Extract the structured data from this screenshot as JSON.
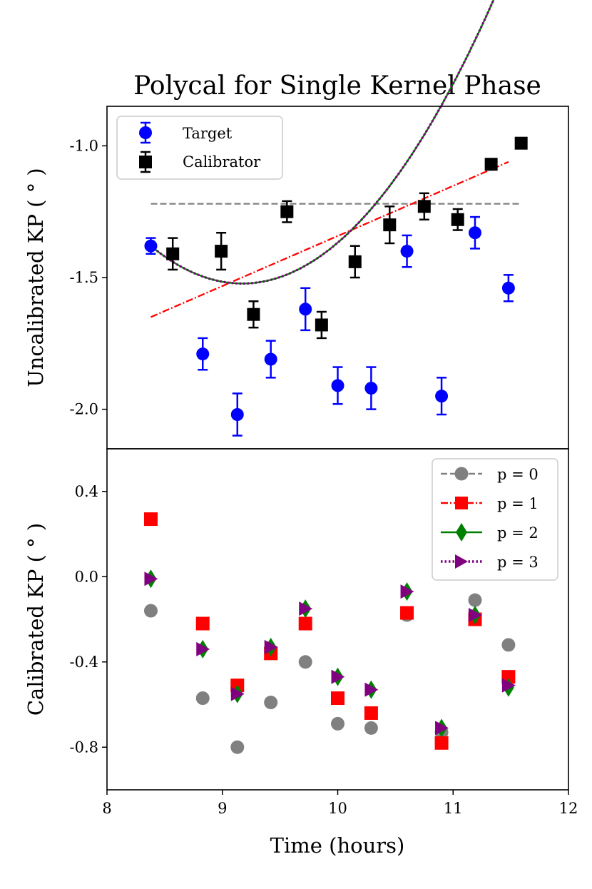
{
  "chart_data": [
    {
      "type": "scatter",
      "title": "Polycal for Single Kernel Phase",
      "xlabel": "",
      "ylabel": "Uncalibrated KP ( ° )",
      "xlim": [
        8,
        12
      ],
      "ylim": [
        -2.15,
        -0.85
      ],
      "yticks": [
        -1.0,
        -1.5,
        -2.0
      ],
      "ytick_labels": [
        "-1.0",
        "-1.5",
        "-2.0"
      ],
      "legend_position": "upper-left",
      "series": [
        {
          "name": "Target",
          "color": "#0000ff",
          "marker": "circle",
          "x": [
            8.38,
            8.83,
            9.13,
            9.42,
            9.72,
            10.0,
            10.29,
            10.6,
            10.9,
            11.19,
            11.48
          ],
          "y": [
            -1.38,
            -1.79,
            -2.02,
            -1.81,
            -1.62,
            -1.91,
            -1.92,
            -1.4,
            -1.95,
            -1.33,
            -1.54
          ],
          "err": [
            0.03,
            0.06,
            0.08,
            0.07,
            0.08,
            0.07,
            0.08,
            0.06,
            0.07,
            0.06,
            0.05
          ]
        },
        {
          "name": "Calibrator",
          "color": "#000000",
          "marker": "square",
          "x": [
            8.57,
            8.99,
            9.27,
            9.56,
            9.86,
            10.15,
            10.45,
            10.75,
            11.04,
            11.33,
            11.59
          ],
          "y": [
            -1.41,
            -1.4,
            -1.64,
            -1.25,
            -1.68,
            -1.44,
            -1.3,
            -1.23,
            -1.28,
            -1.07,
            -0.99
          ],
          "err": [
            0.06,
            0.07,
            0.05,
            0.04,
            0.05,
            0.06,
            0.07,
            0.05,
            0.04,
            0.02,
            0.02
          ]
        }
      ],
      "fits": [
        {
          "name": "p = 0",
          "color": "#808080",
          "style": "dashed",
          "x_range": [
            8.38,
            11.59
          ],
          "poly": [
            -1.22
          ]
        },
        {
          "name": "p = 1",
          "color": "#ff0000",
          "style": "dashdot",
          "x_range": [
            8.38,
            11.48
          ],
          "poly": [
            -1.65,
            0.19
          ]
        },
        {
          "name": "p = 2",
          "color": "#008000",
          "style": "solid",
          "x_range": [
            8.38,
            11.48
          ],
          "poly": [
            -1.38,
            -0.36,
            0.227
          ]
        },
        {
          "name": "p = 3",
          "color": "#800080",
          "style": "dotted",
          "x_range": [
            8.38,
            11.48
          ],
          "poly": [
            -1.38,
            -0.36,
            0.227
          ]
        }
      ]
    },
    {
      "type": "scatter",
      "title": "",
      "xlabel": "Time (hours)",
      "ylabel": "Calibrated KP ( ° )",
      "xlim": [
        8,
        12
      ],
      "ylim": [
        -1.0,
        0.6
      ],
      "xticks": [
        8,
        9,
        10,
        11,
        12
      ],
      "xtick_labels": [
        "8",
        "9",
        "10",
        "11",
        "12"
      ],
      "yticks": [
        0.4,
        0.0,
        -0.4,
        -0.8
      ],
      "ytick_labels": [
        "0.4",
        "0.0",
        "-0.4",
        "-0.8"
      ],
      "legend_position": "upper-right",
      "x": [
        8.38,
        8.83,
        9.13,
        9.42,
        9.72,
        10.0,
        10.29,
        10.6,
        10.9,
        11.19,
        11.48
      ],
      "series": [
        {
          "name": "p = 0",
          "color": "#808080",
          "marker": "circle",
          "line": "dashed",
          "y": [
            -0.16,
            -0.57,
            -0.8,
            -0.59,
            -0.4,
            -0.69,
            -0.71,
            -0.18,
            -0.73,
            -0.11,
            -0.32
          ]
        },
        {
          "name": "p = 1",
          "color": "#ff0000",
          "marker": "square",
          "line": "dashdot",
          "y": [
            0.27,
            -0.22,
            -0.51,
            -0.36,
            -0.22,
            -0.57,
            -0.64,
            -0.17,
            -0.78,
            -0.2,
            -0.47
          ]
        },
        {
          "name": "p = 2",
          "color": "#008000",
          "marker": "diamond",
          "line": "solid",
          "y": [
            -0.01,
            -0.34,
            -0.55,
            -0.33,
            -0.15,
            -0.47,
            -0.53,
            -0.07,
            -0.71,
            -0.18,
            -0.52
          ]
        },
        {
          "name": "p = 3",
          "color": "#800080",
          "marker": "triangle-right",
          "line": "dotted",
          "y": [
            -0.01,
            -0.34,
            -0.55,
            -0.33,
            -0.15,
            -0.47,
            -0.53,
            -0.07,
            -0.71,
            -0.18,
            -0.51
          ]
        }
      ]
    }
  ]
}
